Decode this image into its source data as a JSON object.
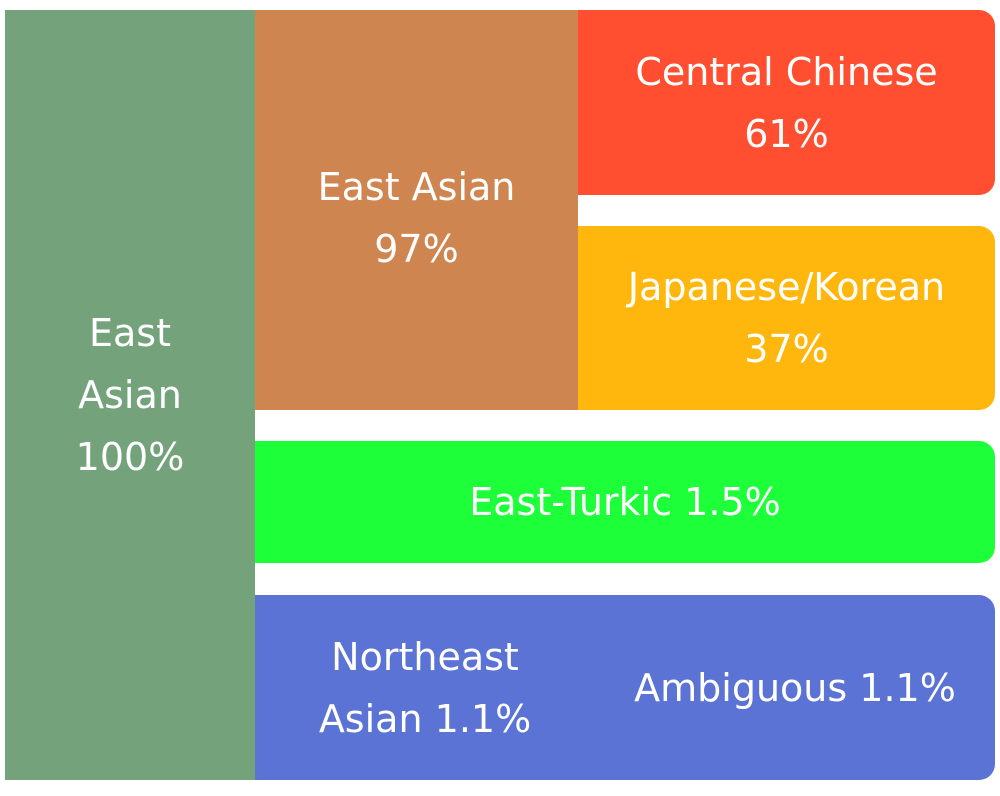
{
  "root": {
    "name": "East Asian",
    "share": "100%"
  },
  "groups": [
    {
      "name": "East Asian",
      "share": "97%",
      "children": [
        {
          "name": "Central Chinese",
          "share": "61%"
        },
        {
          "name": "Japanese/Korean",
          "share": "37%"
        }
      ]
    },
    {
      "name": "East-Turkic",
      "share": "1.5%"
    },
    {
      "name": "Northeast Asian",
      "share": "1.1%",
      "children": [
        {
          "name": "Ambiguous",
          "share": "1.1%"
        }
      ]
    }
  ]
}
